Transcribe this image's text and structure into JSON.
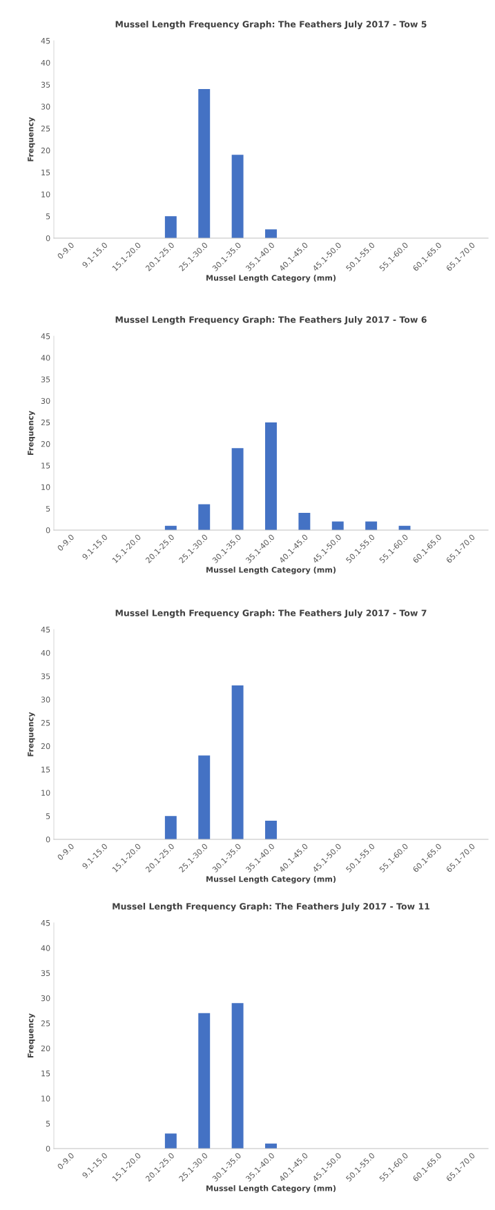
{
  "chart_data": [
    {
      "type": "bar",
      "title": "Mussel Length Frequency Graph: The Feathers July 2017 - Tow 5",
      "xlabel": "Mussel Length Category (mm)",
      "ylabel": "Frequency",
      "categories": [
        "0-9.0",
        "9.1-15.0",
        "15.1-20.0",
        "20.1-25.0",
        "25.1-30.0",
        "30.1-35.0",
        "35.1-40.0",
        "40.1-45.0",
        "45.1-50.0",
        "50.1-55.0",
        "55.1-60.0",
        "60.1-65.0",
        "65.1-70.0"
      ],
      "values": [
        0,
        0,
        0,
        5,
        34,
        19,
        2,
        0,
        0,
        0,
        0,
        0,
        0
      ],
      "color": "#4472c4",
      "ylim": [
        0,
        45
      ],
      "yticks": [
        0,
        5,
        10,
        15,
        20,
        25,
        30,
        35,
        40,
        45
      ]
    },
    {
      "type": "bar",
      "title": "Mussel Length Frequency Graph: The Feathers July 2017 - Tow 6",
      "xlabel": "Mussel Length Category (mm)",
      "ylabel": "Frequency",
      "categories": [
        "0-9.0",
        "9.1-15.0",
        "15.1-20.0",
        "20.1-25.0",
        "25.1-30.0",
        "30.1-35.0",
        "35.1-40.0",
        "40.1-45.0",
        "45.1-50.0",
        "50.1-55.0",
        "55.1-60.0",
        "60.1-65.0",
        "65.1-70.0"
      ],
      "values": [
        0,
        0,
        0,
        1,
        6,
        19,
        25,
        4,
        2,
        2,
        1,
        0,
        0
      ],
      "color": "#4472c4",
      "ylim": [
        0,
        45
      ],
      "yticks": [
        0,
        5,
        10,
        15,
        20,
        25,
        30,
        35,
        40,
        45
      ]
    },
    {
      "type": "bar",
      "title": "Mussel Length Frequency Graph: The Feathers July 2017 - Tow 7",
      "xlabel": "Mussel Length Category (mm)",
      "ylabel": "Frequency",
      "categories": [
        "0-9.0",
        "9.1-15.0",
        "15.1-20.0",
        "20.1-25.0",
        "25.1-30.0",
        "30.1-35.0",
        "35.1-40.0",
        "40.1-45.0",
        "45.1-50.0",
        "50.1-55.0",
        "55.1-60.0",
        "60.1-65.0",
        "65.1-70.0"
      ],
      "values": [
        0,
        0,
        0,
        5,
        18,
        33,
        4,
        0,
        0,
        0,
        0,
        0,
        0
      ],
      "color": "#4472c4",
      "ylim": [
        0,
        45
      ],
      "yticks": [
        0,
        5,
        10,
        15,
        20,
        25,
        30,
        35,
        40,
        45
      ]
    },
    {
      "type": "bar",
      "title": "Mussel Length Frequency Graph: The Feathers July 2017 - Tow 11",
      "xlabel": "Mussel Length Category (mm)",
      "ylabel": "Frequency",
      "categories": [
        "0-9.0",
        "9.1-15.0",
        "15.1-20.0",
        "20.1-25.0",
        "25.1-30.0",
        "30.1-35.0",
        "35.1-40.0",
        "40.1-45.0",
        "45.1-50.0",
        "50.1-55.0",
        "55.1-60.0",
        "60.1-65.0",
        "65.1-70.0"
      ],
      "values": [
        0,
        0,
        0,
        3,
        27,
        29,
        1,
        0,
        0,
        0,
        0,
        0,
        0
      ],
      "color": "#4472c4",
      "ylim": [
        0,
        45
      ],
      "yticks": [
        0,
        5,
        10,
        15,
        20,
        25,
        30,
        35,
        40,
        45
      ]
    }
  ]
}
